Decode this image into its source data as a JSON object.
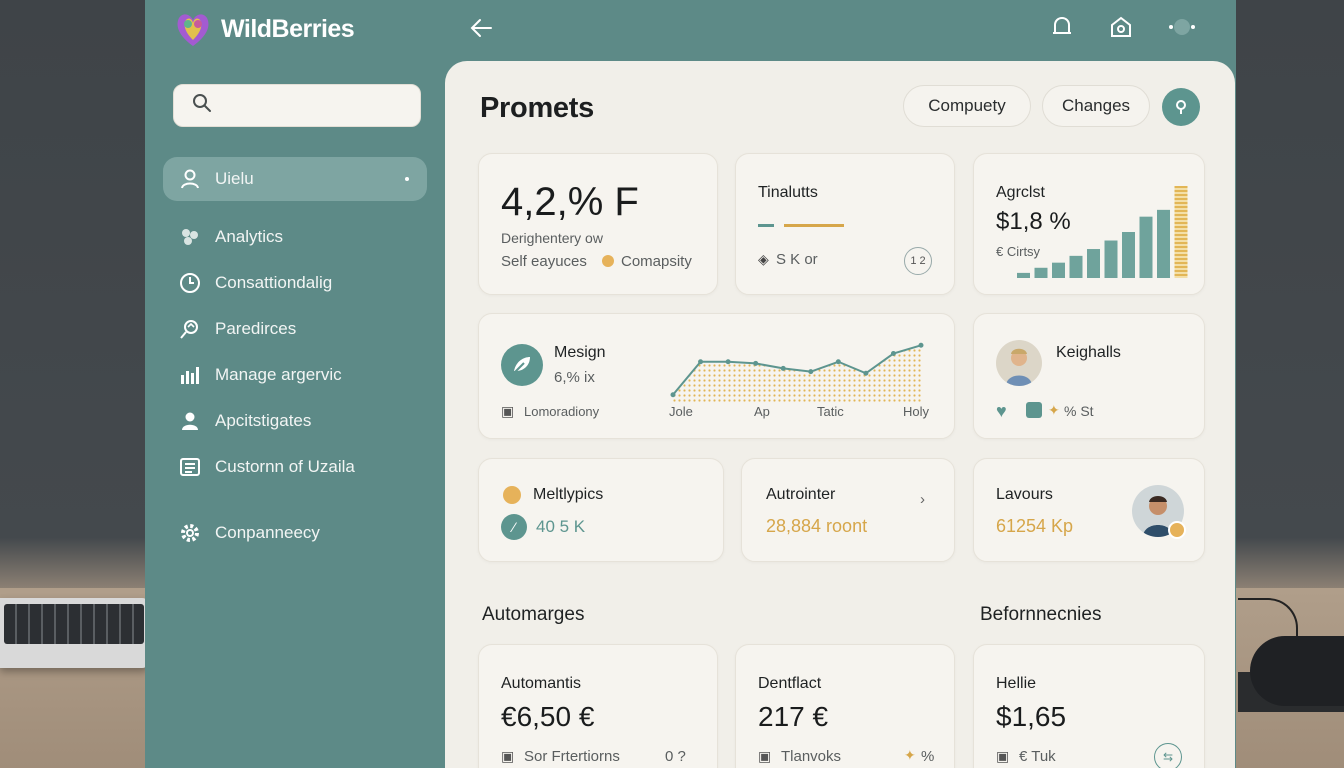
{
  "app": {
    "brand": "WildBerries",
    "colors": {
      "sidebar": "#5d8a87",
      "accent": "#5d958f",
      "gold": "#d6a64a",
      "panel": "#f1efe9"
    }
  },
  "sidebar": {
    "search_placeholder": "",
    "items": [
      {
        "label": "Uielu",
        "icon": "user-icon",
        "active": true
      },
      {
        "label": "Analytics",
        "icon": "analytics-icon"
      },
      {
        "label": "Consattiondalig",
        "icon": "clock-icon"
      },
      {
        "label": "Paredirces",
        "icon": "search-list-icon"
      },
      {
        "label": "Manage argervic",
        "icon": "bar-chart-icon"
      },
      {
        "label": "Apcitstigates",
        "icon": "person-icon"
      },
      {
        "label": "Custornn of Uzaila",
        "icon": "list-icon"
      },
      {
        "label": "Conpanneecy",
        "icon": "gear-icon"
      }
    ]
  },
  "topbar": {
    "icons": [
      "back-arrow-icon",
      "notification-icon",
      "home-icon",
      "profile-icon"
    ]
  },
  "main": {
    "title": "Promets",
    "pills": [
      "Compuety",
      "Changes"
    ],
    "cards": {
      "kpi": {
        "value": "4,2,% F",
        "line1": "Derighentery ow",
        "line2": "Self eayuces",
        "tag": "Comapsity"
      },
      "tinalutts": {
        "title": "Tinalutts",
        "footer": "S K or",
        "badge": "1 2"
      },
      "agrclst": {
        "title": "Agrclst",
        "value": "$1,8 %",
        "sub": "€ Cirtsy",
        "bars": [
          3,
          6,
          9,
          13,
          17,
          22,
          27,
          36,
          40,
          54
        ]
      },
      "mesign": {
        "title": "Mesign",
        "value": "6,% ix",
        "footer": "Lomoradiony",
        "chart_labels": [
          "Jole",
          "Ap",
          "Tatic",
          "Holy"
        ],
        "line": [
          2,
          22,
          22,
          21,
          18,
          16,
          22,
          15,
          27,
          32
        ]
      },
      "keighalls": {
        "title": "Keighalls",
        "footer": "% St"
      },
      "mellypics": {
        "title": "Meltlypics",
        "value": "40 5 K"
      },
      "autrointer": {
        "title": "Autrointer",
        "value": "28,884 roont"
      },
      "lavours": {
        "title": "Lavours",
        "value": "61254 Kp"
      }
    },
    "sections": {
      "left": "Automarges",
      "right": "Befornnecnies"
    },
    "bottom_cards": [
      {
        "title": "Automantis",
        "value": "€6,50 €",
        "footer": "Sor Frtertiorns",
        "extra": "0 ?"
      },
      {
        "title": "Dentflact",
        "value": "217 €",
        "footer": "Tlanvoks",
        "extra": "%"
      },
      {
        "title": "Hellie",
        "value": "$1,65",
        "footer": "€ Tuk",
        "extra": ""
      }
    ]
  }
}
